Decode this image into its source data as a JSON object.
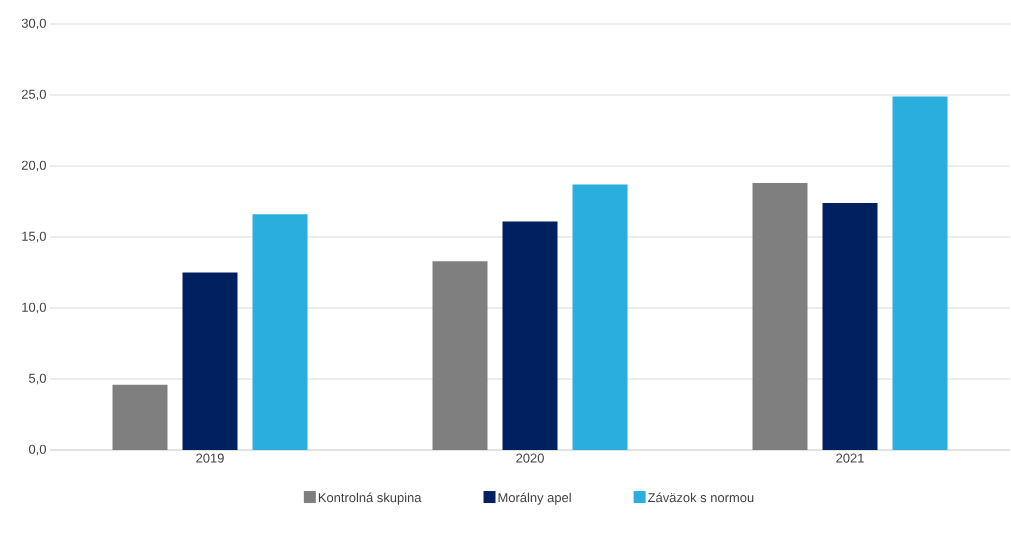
{
  "chart_data": {
    "type": "bar",
    "categories": [
      "2019",
      "2020",
      "2021"
    ],
    "series": [
      {
        "name": "Kontrolná skupina",
        "color": "#7f7f7f",
        "values": [
          4.6,
          13.3,
          18.8
        ]
      },
      {
        "name": "Morálny apel",
        "color": "#002060",
        "values": [
          12.5,
          16.1,
          17.4
        ]
      },
      {
        "name": "Záväzok s normou",
        "color": "#2aaedd",
        "values": [
          16.6,
          18.7,
          24.9
        ]
      }
    ],
    "ylim": [
      0,
      30
    ],
    "yticks": [
      {
        "value": 0,
        "label": "0,0"
      },
      {
        "value": 5,
        "label": "5,0"
      },
      {
        "value": 10,
        "label": "10,0"
      },
      {
        "value": 15,
        "label": "15,0"
      },
      {
        "value": 20,
        "label": "20,0"
      },
      {
        "value": 25,
        "label": "25,0"
      },
      {
        "value": 30,
        "label": "30,0"
      }
    ],
    "grid": "y",
    "legend": "bottom"
  }
}
